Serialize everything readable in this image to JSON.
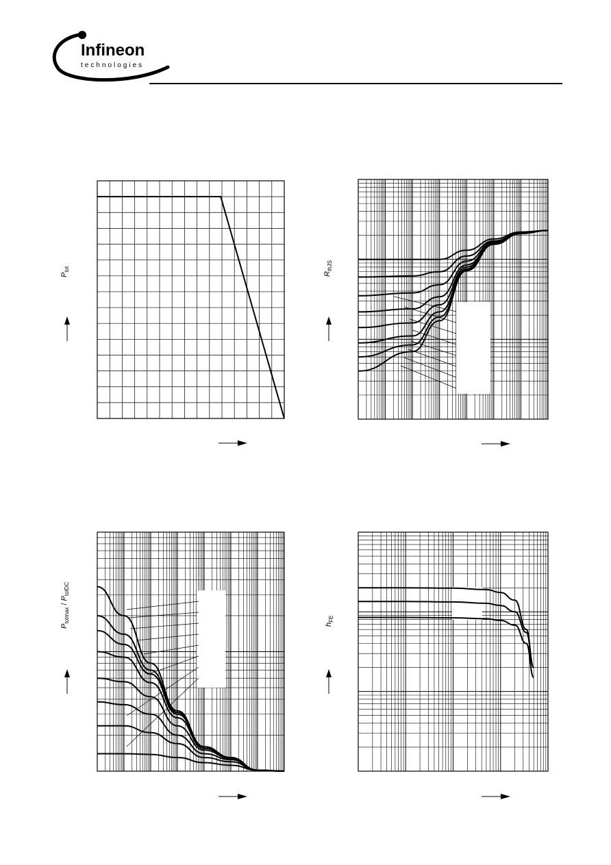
{
  "header": {
    "brand": "Infineon",
    "brand_sub": "technologies"
  },
  "labels": {
    "chart1_y_main": "P",
    "chart1_y_sub": "tot",
    "chart2_y_main": "R",
    "chart2_y_sub": "thJS",
    "chart3_y_main1": "P",
    "chart3_y_sub1": "totmax",
    "chart3_y_sep": " / ",
    "chart3_y_main2": "P",
    "chart3_y_sub2": "totDC",
    "chart4_y_main": "h",
    "chart4_y_sub": "FE"
  },
  "chart_data": [
    {
      "type": "line",
      "scale": "linear",
      "grid": true,
      "xlim": [
        0,
        150
      ],
      "ylim": [
        0,
        15
      ],
      "series": [
        {
          "x": [
            0,
            99,
            150
          ],
          "y": [
            14,
            14,
            0
          ]
        }
      ]
    },
    {
      "type": "line",
      "scale": "log-log",
      "grid": true,
      "xlim": [
        1e-07,
        1
      ],
      "ylim": [
        1,
        1000
      ],
      "series": [
        {
          "x": [
            1e-07,
            1e-05,
            0.0001,
            0.001,
            0.01,
            0.1,
            1
          ],
          "y": [
            100,
            100,
            100,
            130,
            180,
            220,
            230
          ]
        },
        {
          "x": [
            1e-07,
            1e-05,
            0.0001,
            0.001,
            0.01,
            0.1,
            1
          ],
          "y": [
            60,
            62,
            70,
            110,
            170,
            215,
            230
          ]
        },
        {
          "x": [
            1e-07,
            1e-05,
            0.0001,
            0.001,
            0.01,
            0.1,
            1
          ],
          "y": [
            35,
            38,
            48,
            95,
            165,
            215,
            230
          ]
        },
        {
          "x": [
            1e-07,
            1e-05,
            0.0001,
            0.001,
            0.01,
            0.1,
            1
          ],
          "y": [
            22,
            24,
            34,
            85,
            160,
            212,
            230
          ]
        },
        {
          "x": [
            1e-07,
            1e-05,
            0.0001,
            0.001,
            0.01,
            0.1,
            1
          ],
          "y": [
            14,
            16,
            27,
            80,
            158,
            212,
            230
          ]
        },
        {
          "x": [
            1e-07,
            1e-05,
            0.0001,
            0.001,
            0.01,
            0.1,
            1
          ],
          "y": [
            9,
            11,
            22,
            76,
            156,
            211,
            230
          ]
        },
        {
          "x": [
            1e-07,
            1e-05,
            0.0001,
            0.001,
            0.01,
            0.1,
            1
          ],
          "y": [
            6,
            8.5,
            19,
            74,
            155,
            210,
            230
          ]
        },
        {
          "x": [
            1e-07,
            1e-05,
            0.0001,
            0.001,
            0.01,
            0.1,
            1
          ],
          "y": [
            4,
            7,
            17,
            72,
            154,
            210,
            230
          ]
        }
      ]
    },
    {
      "type": "line",
      "scale": "log-log",
      "grid": true,
      "xlim": [
        1e-07,
        1
      ],
      "ylim": [
        1,
        100
      ],
      "series": [
        {
          "x": [
            1e-07,
            1e-06,
            1e-05,
            0.0001,
            0.001,
            0.01,
            0.1,
            1
          ],
          "y": [
            35,
            20,
            8,
            3.2,
            1.6,
            1.3,
            1.02,
            1
          ]
        },
        {
          "x": [
            1e-07,
            1e-06,
            1e-05,
            0.0001,
            0.001,
            0.01,
            0.1,
            1
          ],
          "y": [
            20,
            14,
            7,
            3.1,
            1.6,
            1.3,
            1.02,
            1
          ]
        },
        {
          "x": [
            1e-07,
            1e-06,
            1e-05,
            0.0001,
            0.001,
            0.01,
            0.1,
            1
          ],
          "y": [
            15,
            11.5,
            6.5,
            3,
            1.6,
            1.3,
            1.02,
            1
          ]
        },
        {
          "x": [
            1e-07,
            1e-06,
            1e-05,
            0.0001,
            0.001,
            0.01,
            0.1,
            1
          ],
          "y": [
            10,
            9,
            5.5,
            2.8,
            1.55,
            1.3,
            1.02,
            1
          ]
        },
        {
          "x": [
            1e-07,
            1e-06,
            1e-05,
            0.0001,
            0.001,
            0.01,
            0.1,
            1
          ],
          "y": [
            6,
            5.6,
            4.2,
            2.4,
            1.5,
            1.28,
            1.02,
            1
          ]
        },
        {
          "x": [
            1e-07,
            1e-06,
            1e-05,
            0.0001,
            0.001,
            0.01,
            0.1,
            1
          ],
          "y": [
            3.8,
            3.6,
            3,
            2,
            1.4,
            1.25,
            1.02,
            1
          ]
        },
        {
          "x": [
            1e-07,
            1e-06,
            1e-05,
            0.0001,
            0.001,
            0.01,
            0.1,
            1
          ],
          "y": [
            2.4,
            2.4,
            2.1,
            1.7,
            1.3,
            1.2,
            1.02,
            1
          ]
        },
        {
          "x": [
            1e-07,
            1e-06,
            1e-05,
            0.0001,
            0.001,
            0.01,
            0.1,
            1
          ],
          "y": [
            1.4,
            1.4,
            1.38,
            1.3,
            1.18,
            1.12,
            1.02,
            1
          ]
        }
      ]
    },
    {
      "type": "line",
      "scale": "log-log",
      "grid": true,
      "xlim": [
        0.1,
        1000
      ],
      "ylim": [
        1,
        1000
      ],
      "series": [
        {
          "x": [
            0.1,
            1,
            10,
            50,
            100,
            200,
            350,
            500
          ],
          "y": [
            200,
            200,
            198,
            190,
            175,
            140,
            60,
            20
          ]
        },
        {
          "x": [
            0.1,
            1,
            10,
            50,
            100,
            200,
            350,
            500
          ],
          "y": [
            135,
            135,
            133,
            128,
            120,
            100,
            55,
            20
          ]
        },
        {
          "x": [
            0.1,
            1,
            10,
            50,
            100,
            200,
            350,
            500
          ],
          "y": [
            85,
            85,
            84,
            82,
            78,
            68,
            40,
            15
          ]
        }
      ]
    }
  ]
}
